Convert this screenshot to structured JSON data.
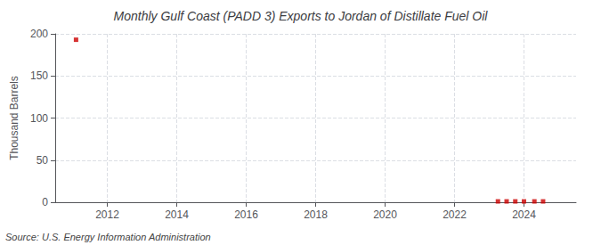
{
  "chart_data": {
    "type": "scatter",
    "title": "Monthly Gulf Coast (PADD 3) Exports to Jordan of Distillate Fuel Oil",
    "ylabel": "Thousand Barrels",
    "source": "Source: U.S. Energy Information Administration",
    "x": [
      2011.1,
      2023.25,
      2023.5,
      2023.75,
      2024.0,
      2024.3,
      2024.55
    ],
    "values": [
      193,
      1,
      1,
      1,
      1,
      1,
      1
    ],
    "color": "#cc0000",
    "marker": "square",
    "xlim": [
      2010.5,
      2025.5
    ],
    "xticks": [
      2012,
      2014,
      2016,
      2018,
      2020,
      2022,
      2024
    ],
    "ylim": [
      0,
      200
    ],
    "yticks": [
      0,
      50,
      100,
      150,
      200
    ],
    "grid": true
  }
}
